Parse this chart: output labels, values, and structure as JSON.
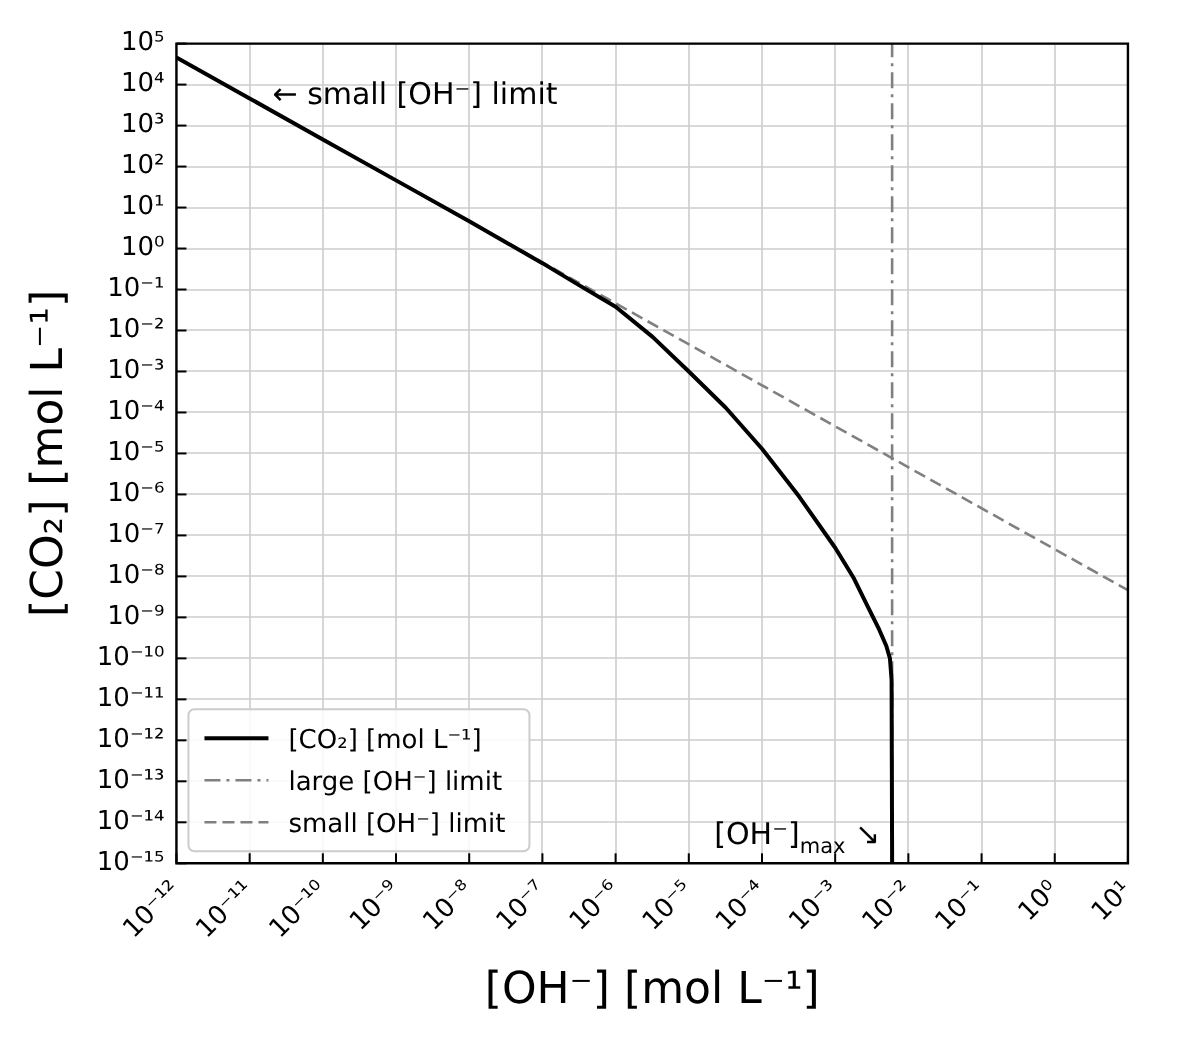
{
  "chart_data": {
    "type": "line",
    "xlabel": "[OH⁻] [mol L⁻¹]",
    "ylabel": "[CO₂] [mol L⁻¹]",
    "log": "xy",
    "grid": true,
    "legend": "bottom left",
    "marker": "none",
    "xlim": [
      1e-12,
      10
    ],
    "ylim": [
      1e-15,
      100000
    ],
    "xticks": [
      {
        "value": 1e-12,
        "label": "10⁻¹²"
      },
      {
        "value": 1e-11,
        "label": "10⁻¹¹"
      },
      {
        "value": 1e-10,
        "label": "10⁻¹⁰"
      },
      {
        "value": 1e-09,
        "label": "10⁻⁹"
      },
      {
        "value": 1e-08,
        "label": "10⁻⁸"
      },
      {
        "value": 1e-07,
        "label": "10⁻⁷"
      },
      {
        "value": 1e-06,
        "label": "10⁻⁶"
      },
      {
        "value": 1e-05,
        "label": "10⁻⁵"
      },
      {
        "value": 0.0001,
        "label": "10⁻⁴"
      },
      {
        "value": 0.001,
        "label": "10⁻³"
      },
      {
        "value": 0.01,
        "label": "10⁻²"
      },
      {
        "value": 0.1,
        "label": "10⁻¹"
      },
      {
        "value": 1,
        "label": "10⁰"
      },
      {
        "value": 10,
        "label": "10¹"
      }
    ],
    "yticks": [
      {
        "value": 1e-15,
        "label": "10⁻¹⁵"
      },
      {
        "value": 1e-14,
        "label": "10⁻¹⁴"
      },
      {
        "value": 1e-13,
        "label": "10⁻¹³"
      },
      {
        "value": 1e-12,
        "label": "10⁻¹²"
      },
      {
        "value": 1e-11,
        "label": "10⁻¹¹"
      },
      {
        "value": 1e-10,
        "label": "10⁻¹⁰"
      },
      {
        "value": 1e-09,
        "label": "10⁻⁹"
      },
      {
        "value": 1e-08,
        "label": "10⁻⁸"
      },
      {
        "value": 1e-07,
        "label": "10⁻⁷"
      },
      {
        "value": 1e-06,
        "label": "10⁻⁶"
      },
      {
        "value": 1e-05,
        "label": "10⁻⁵"
      },
      {
        "value": 0.0001,
        "label": "10⁻⁴"
      },
      {
        "value": 0.001,
        "label": "10⁻³"
      },
      {
        "value": 0.01,
        "label": "10⁻²"
      },
      {
        "value": 0.1,
        "label": "10⁻¹"
      },
      {
        "value": 1,
        "label": "10⁰"
      },
      {
        "value": 10,
        "label": "10¹"
      },
      {
        "value": 100,
        "label": "10²"
      },
      {
        "value": 1000,
        "label": "10³"
      },
      {
        "value": 10000,
        "label": "10⁴"
      },
      {
        "value": 100000,
        "label": "10⁵"
      }
    ],
    "series": [
      {
        "name": "[CO₂] [mol L⁻¹]",
        "color": "#000000",
        "line_style": "solid",
        "x": [
          1e-12,
          1e-11,
          1e-10,
          1e-09,
          1e-08,
          3.2e-08,
          1e-07,
          3.2e-07,
          1e-06,
          3.2e-06,
          1e-05,
          3.2e-05,
          0.0001,
          0.00032,
          0.001,
          0.0018,
          0.0028,
          0.004,
          0.005,
          0.0056,
          0.0059,
          0.006
        ],
        "values": [
          46000,
          4600,
          460,
          46,
          4.6,
          1.4,
          0.44,
          0.126,
          0.038,
          0.007,
          0.001,
          0.00013,
          1.3e-05,
          9e-07,
          5e-08,
          9e-09,
          1.8e-09,
          5e-10,
          2e-10,
          1e-10,
          3e-11,
          1e-15
        ]
      },
      {
        "name": "large [OH⁻] limit",
        "color": "#808080",
        "line_style": "dashdot",
        "x": [
          0.006,
          0.006
        ],
        "values": [
          1e-15,
          100000
        ]
      },
      {
        "name": "small [OH⁻] limit",
        "color": "#808080",
        "line_style": "dashed",
        "x": [
          1e-12,
          10
        ],
        "values": [
          46000,
          4.6e-09
        ]
      }
    ],
    "annotations": [
      "← small [OH⁻] limit",
      {
        "text": "[OH⁻]$_{max}$ ↘",
        "x": 0.006,
        "y": 3e-15
      }
    ]
  }
}
